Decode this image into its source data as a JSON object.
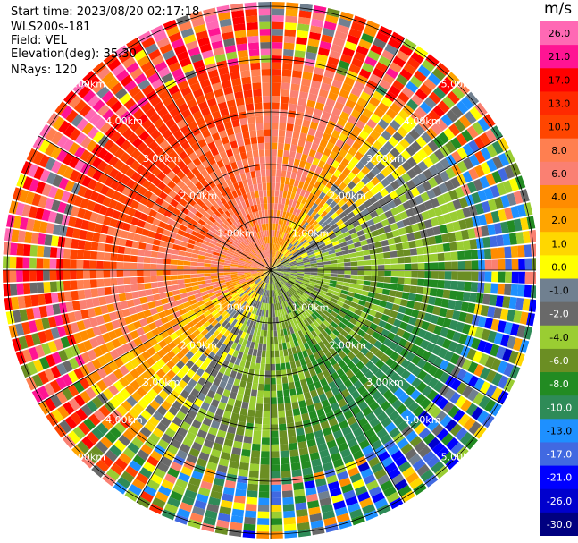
{
  "header": {
    "start_time": "Start time: 2023/08/20 02:17:18",
    "instrument": "WLS200s-181",
    "field": "Field: VEL",
    "elevation": "Elevation(deg): 35.30",
    "nrays": "NRays: 120"
  },
  "chart_data": {
    "type": "heatmap",
    "projection": "polar-ppi",
    "field": "VEL",
    "units": "m/s",
    "n_rays": 120,
    "elevation_deg": 35.3,
    "range_km_max": 5.2,
    "range_rings_km": [
      1,
      2,
      3,
      4,
      5
    ],
    "ring_labels": [
      "1.00km",
      "2.00km",
      "3.00km",
      "4.00km",
      "5.00km"
    ],
    "colorbar": {
      "title": "m/s",
      "ticks": [
        "26.0",
        "21.0",
        "17.0",
        "13.0",
        "10.0",
        "8.0",
        "6.0",
        "4.0",
        "2.0",
        "1.0",
        "0.0",
        "-1.0",
        "-2.0",
        "-4.0",
        "-6.0",
        "-8.0",
        "-10.0",
        "-13.0",
        "-17.0",
        "-21.0",
        "-26.0",
        "-30.0"
      ],
      "colors": [
        "#ff69b4",
        "#ff1493",
        "#ff0000",
        "#ff2a00",
        "#ff4500",
        "#ff7f50",
        "#fa8072",
        "#ff8c00",
        "#ffa500",
        "#ffd700",
        "#ffff00",
        "#708090",
        "#696969",
        "#9acd32",
        "#6b8e23",
        "#228b22",
        "#2e8b57",
        "#1e90ff",
        "#4169e1",
        "#0000ff",
        "#0000cd",
        "#000080"
      ]
    },
    "pattern_note": "positive radial velocity toward upper-left, negative toward lower-right"
  }
}
